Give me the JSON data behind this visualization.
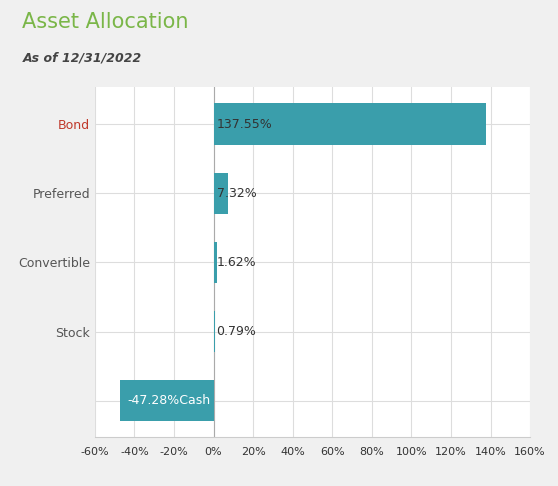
{
  "title": "Asset Allocation",
  "subtitle": "As of 12/31/2022",
  "categories": [
    "Bond",
    "Preferred",
    "Convertible",
    "Stock",
    "Cash"
  ],
  "values": [
    137.55,
    7.32,
    1.62,
    0.79,
    -47.28
  ],
  "bar_color": "#3a9eab",
  "title_color": "#7ab648",
  "subtitle_color": "#444444",
  "category_colors": [
    "#c0392b",
    "#555555",
    "#555555",
    "#555555",
    "#ffffff"
  ],
  "label_color_positive": "#333333",
  "label_color_negative": "#ffffff",
  "xlim": [
    -60,
    160
  ],
  "xticks": [
    -60,
    -40,
    -20,
    0,
    20,
    40,
    60,
    80,
    100,
    120,
    140,
    160
  ],
  "background_color": "#f0f0f0",
  "plot_background": "#ffffff",
  "grid_color": "#dddddd",
  "title_fontsize": 15,
  "subtitle_fontsize": 9,
  "label_fontsize": 9,
  "category_fontsize": 9
}
